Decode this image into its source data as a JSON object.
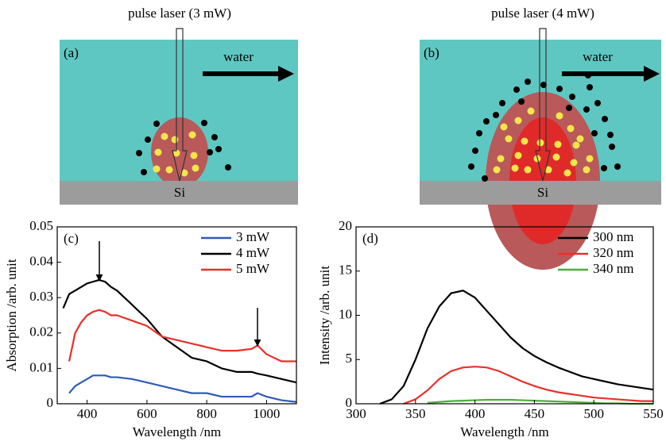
{
  "panels": [
    {
      "label": "(a)",
      "laser": "pulse laser (3 mW)",
      "medium": "water",
      "substrate": "Si"
    },
    {
      "label": "(b)",
      "laser": "pulse laser (4 mW)",
      "medium": "water",
      "substrate": "Si"
    }
  ],
  "chart_data": [
    {
      "type": "line",
      "panel_label": "(c)",
      "x_label": "Wavelength /nm",
      "y_label": "Absorption /arb. unit",
      "x": [
        320,
        340,
        360,
        380,
        400,
        420,
        440,
        460,
        480,
        500,
        550,
        600,
        650,
        700,
        750,
        800,
        850,
        900,
        950,
        970,
        1000,
        1050,
        1100
      ],
      "series": [
        {
          "name": "3 mW",
          "color": "#2f5bb7",
          "values": [
            null,
            0.003,
            0.005,
            0.006,
            0.007,
            0.008,
            0.008,
            0.008,
            0.0075,
            0.0075,
            0.007,
            0.006,
            0.005,
            0.004,
            0.003,
            0.003,
            0.002,
            0.002,
            0.002,
            0.003,
            0.002,
            0.001,
            0.0005
          ]
        },
        {
          "name": "4 mW",
          "color": "#000000",
          "values": [
            0.027,
            0.031,
            0.032,
            0.033,
            0.034,
            0.0345,
            0.035,
            0.0345,
            0.033,
            0.032,
            0.028,
            0.024,
            0.019,
            0.016,
            0.013,
            0.012,
            0.01,
            0.009,
            0.009,
            0.0085,
            0.008,
            0.007,
            0.006
          ]
        },
        {
          "name": "5 mW",
          "color": "#e8302a",
          "values": [
            null,
            0.012,
            0.02,
            0.023,
            0.025,
            0.026,
            0.0265,
            0.026,
            0.025,
            0.025,
            0.0235,
            0.022,
            0.019,
            0.018,
            0.017,
            0.016,
            0.015,
            0.015,
            0.0155,
            0.0165,
            0.014,
            0.012,
            0.012
          ]
        }
      ],
      "xlim": [
        300,
        1100
      ],
      "ylim": [
        0,
        0.05
      ],
      "xticks": [
        400,
        600,
        800,
        1000
      ],
      "yticks": [
        0,
        0.01,
        0.02,
        0.03,
        0.04,
        0.05
      ]
    },
    {
      "type": "line",
      "panel_label": "(d)",
      "x_label": "Wavelength /nm",
      "y_label": "Intensity /arb. unit",
      "x": [
        320,
        330,
        340,
        350,
        360,
        370,
        380,
        390,
        400,
        410,
        420,
        430,
        440,
        450,
        460,
        470,
        480,
        490,
        500,
        510,
        520,
        530,
        540,
        550
      ],
      "series": [
        {
          "name": "300 nm",
          "color": "#000000",
          "values": [
            0,
            0.5,
            2,
            5,
            8.5,
            11,
            12.5,
            12.8,
            12,
            10.5,
            9,
            7.5,
            6.3,
            5.4,
            4.7,
            4.1,
            3.6,
            3.1,
            2.8,
            2.5,
            2.2,
            2,
            1.8,
            1.6
          ]
        },
        {
          "name": "320 nm",
          "color": "#e8302a",
          "values": [
            null,
            null,
            0,
            0.5,
            1.5,
            2.8,
            3.7,
            4.1,
            4.2,
            4.1,
            3.7,
            3.1,
            2.5,
            2,
            1.6,
            1.3,
            1.1,
            0.9,
            0.7,
            0.6,
            0.5,
            0.4,
            0.3,
            0.3
          ]
        },
        {
          "name": "340 nm",
          "color": "#4caf3a",
          "values": [
            null,
            null,
            null,
            null,
            0.1,
            0.2,
            0.3,
            0.35,
            0.4,
            0.45,
            0.45,
            0.45,
            0.4,
            0.35,
            0.3,
            0.25,
            0.2,
            0.15,
            0.1,
            0.05,
            0.05,
            0,
            0,
            0
          ]
        }
      ],
      "xlim": [
        300,
        550
      ],
      "ylim": [
        0,
        20
      ],
      "xticks": [
        300,
        350,
        400,
        450,
        500,
        550
      ],
      "yticks": [
        0,
        5,
        10,
        15,
        20
      ]
    }
  ]
}
